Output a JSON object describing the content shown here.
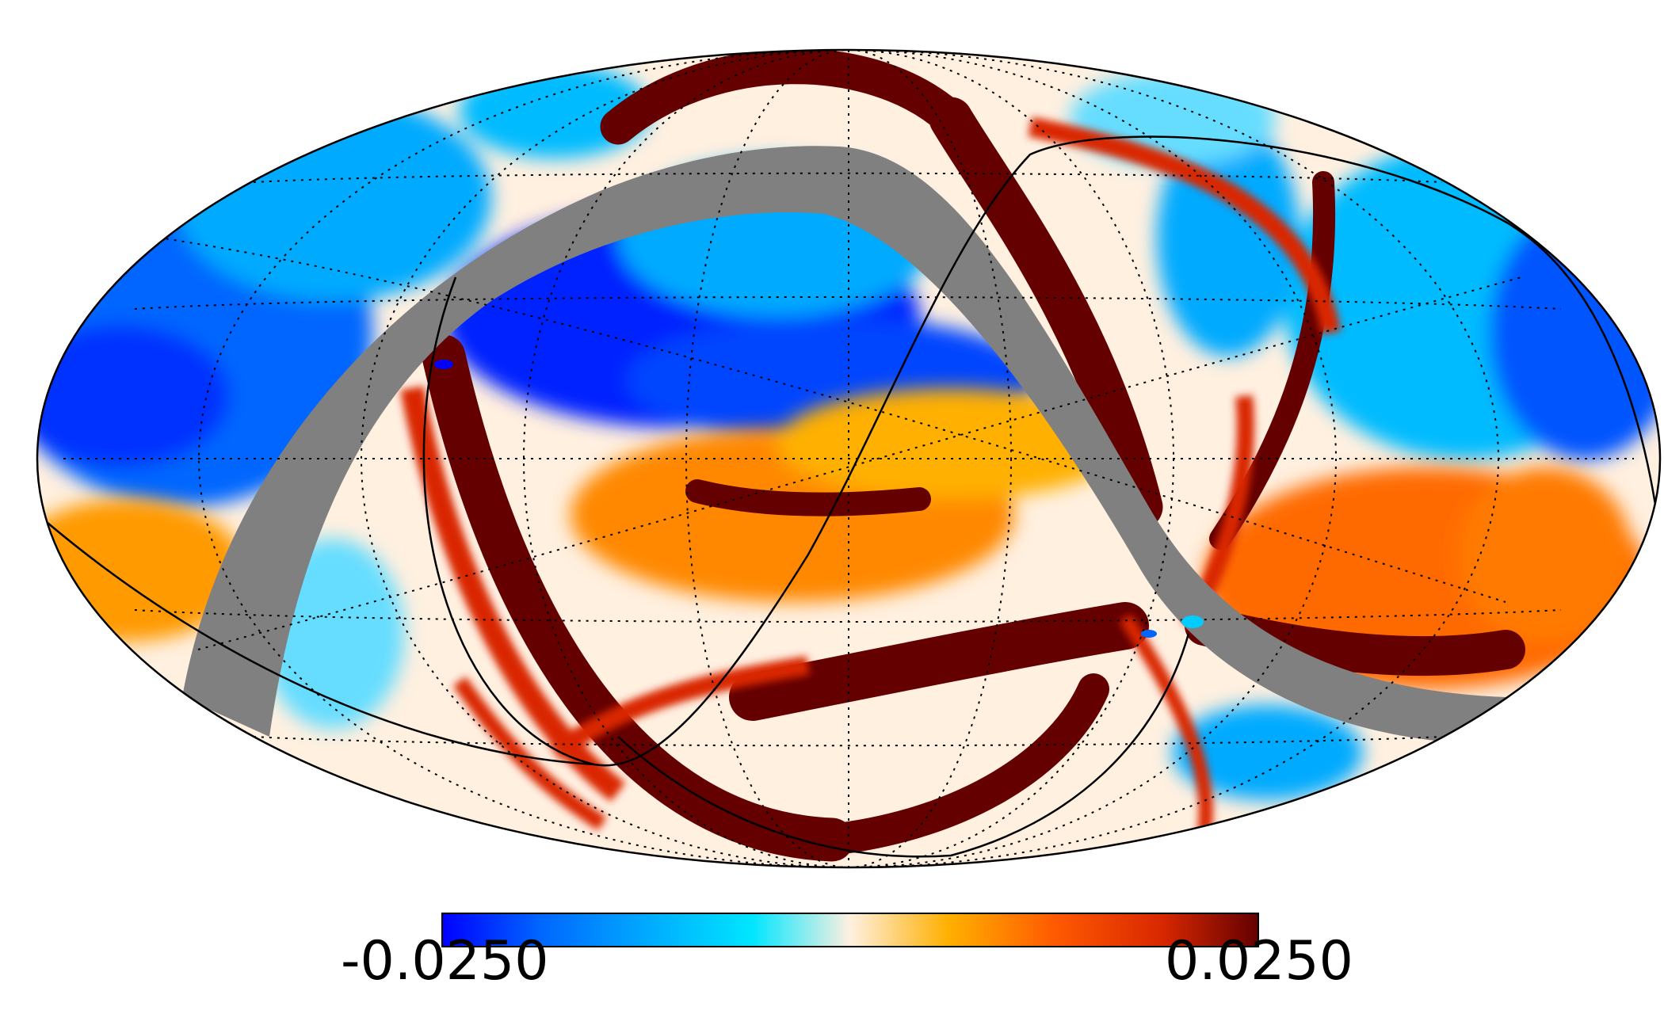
{
  "figure": {
    "projection": "mollweide",
    "masked_band_color": "#808080",
    "graticule": true,
    "colormap": [
      "#0000ff",
      "#0066ff",
      "#00aaff",
      "#00e6ff",
      "#fff0e0",
      "#ffb000",
      "#ff5a00",
      "#d92800",
      "#640000"
    ]
  },
  "colorbar": {
    "min_label": "-0.0250",
    "max_label": "0.0250"
  }
}
